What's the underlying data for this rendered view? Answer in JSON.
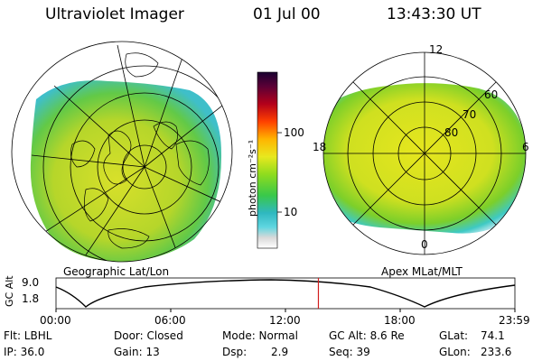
{
  "header": {
    "instrument": "Ultraviolet Imager",
    "date": "01 Jul 00",
    "time": "13:43:30 UT"
  },
  "colorbar": {
    "unit_label": "photon cm⁻²s⁻¹",
    "ticks": [
      "100",
      "10"
    ]
  },
  "left_panel": {
    "caption": "Geographic Lat/Lon"
  },
  "right_panel": {
    "caption": "Apex MLat/MLT",
    "mlt_labels": {
      "top": "12",
      "left": "18",
      "right": "6",
      "bottom": "0"
    },
    "mlat_labels": [
      "60",
      "70",
      "80"
    ]
  },
  "timeline": {
    "ylabel": "GC Alt",
    "yticks": [
      "9.0",
      "1.8"
    ],
    "xticks": [
      "00:00",
      "06:00",
      "12:00",
      "18:00",
      "23:59"
    ],
    "marker_fraction": 0.5718
  },
  "status": {
    "flt": "Flt: LBHL",
    "ip": "IP: 36.0",
    "door": "Door: Closed",
    "gain": "Gain: 13",
    "mode": "Mode: Normal",
    "dsp": "Dsp:",
    "dsp_value": "2.9",
    "gc_alt": "GC Alt: 8.6 Re",
    "seq": "Seq: 39",
    "glat": "GLat:",
    "glat_value": "74.1",
    "glon": "GLon:",
    "glon_value": "233.6"
  },
  "colors": {
    "aurora_main": "#e6e61e",
    "aurora_green": "#7ccf2a",
    "aurora_cyan": "#3ec9c4",
    "marker": "#d21e1e"
  }
}
